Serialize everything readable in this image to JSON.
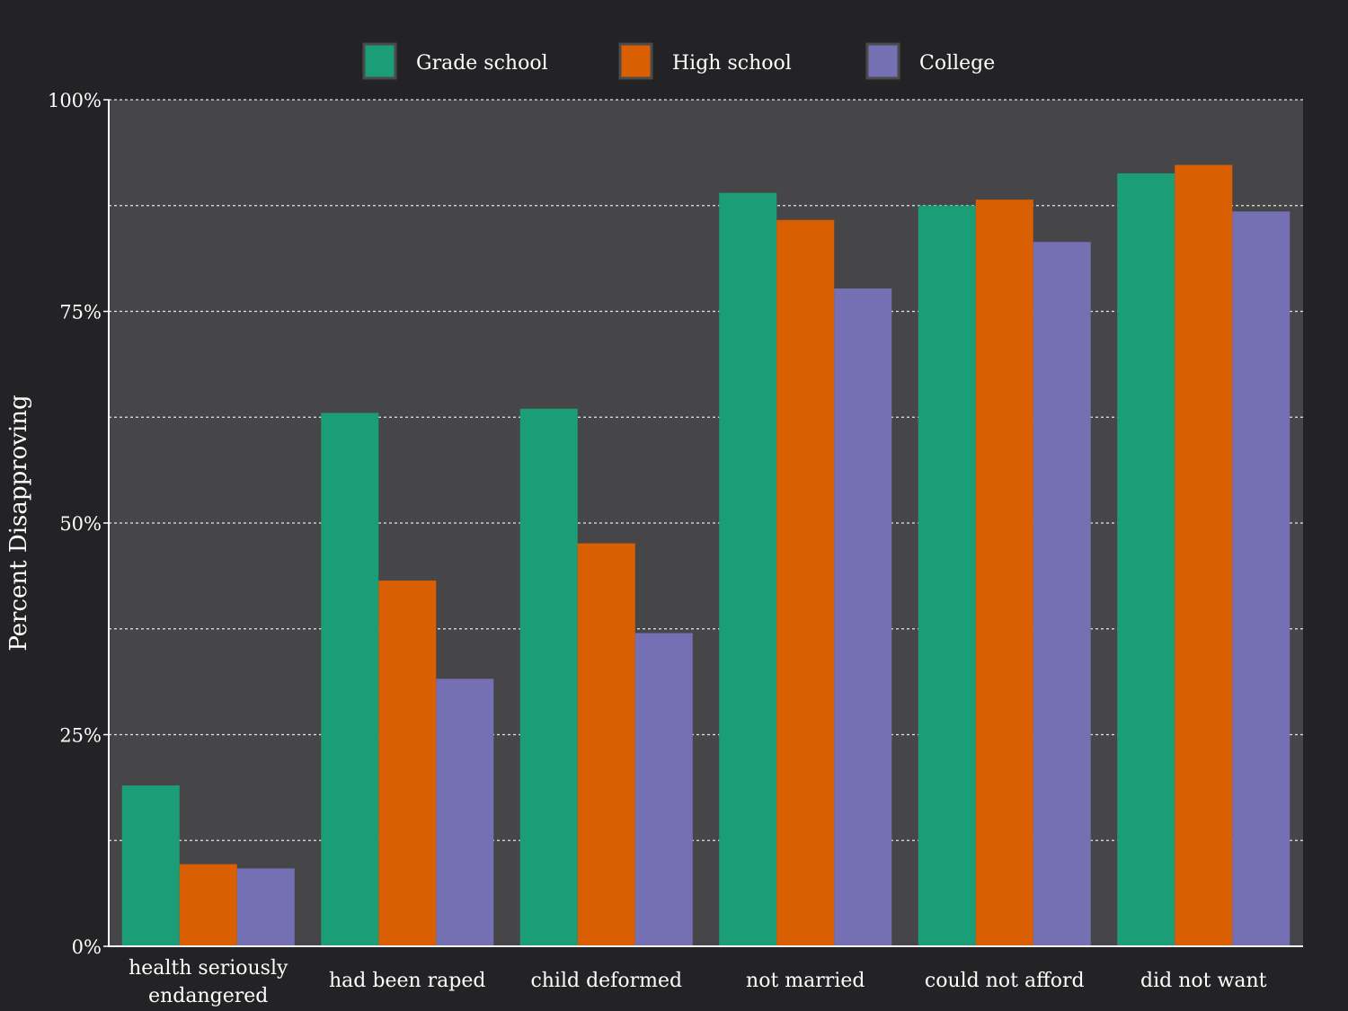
{
  "chart_data": {
    "type": "bar",
    "title": "",
    "xlabel": "",
    "ylabel": "Percent Disapproving",
    "ylim": [
      0,
      100
    ],
    "yticks": [
      0,
      25,
      50,
      75,
      100
    ],
    "ytick_labels": [
      "0%",
      "25%",
      "50%",
      "75%",
      "100%"
    ],
    "grid": true,
    "legend_position": "top-center",
    "categories": [
      "health seriously endangered",
      "had been raped",
      "child deformed",
      "not married",
      "could not afford",
      "did not want"
    ],
    "category_lines": [
      [
        "health seriously",
        "endangered"
      ],
      [
        "had been raped"
      ],
      [
        "child deformed"
      ],
      [
        "not married"
      ],
      [
        "could not afford"
      ],
      [
        "did not want"
      ]
    ],
    "series": [
      {
        "name": "Grade school",
        "color": "#1b9e77",
        "values": [
          19,
          63,
          63.5,
          89,
          87.5,
          91.3
        ]
      },
      {
        "name": "High school",
        "color": "#d95f02",
        "values": [
          9.7,
          43.2,
          47.6,
          85.8,
          88.2,
          92.3
        ]
      },
      {
        "name": "College",
        "color": "#7570b3",
        "values": [
          9.2,
          31.6,
          37,
          77.7,
          83.2,
          86.8
        ]
      }
    ]
  }
}
